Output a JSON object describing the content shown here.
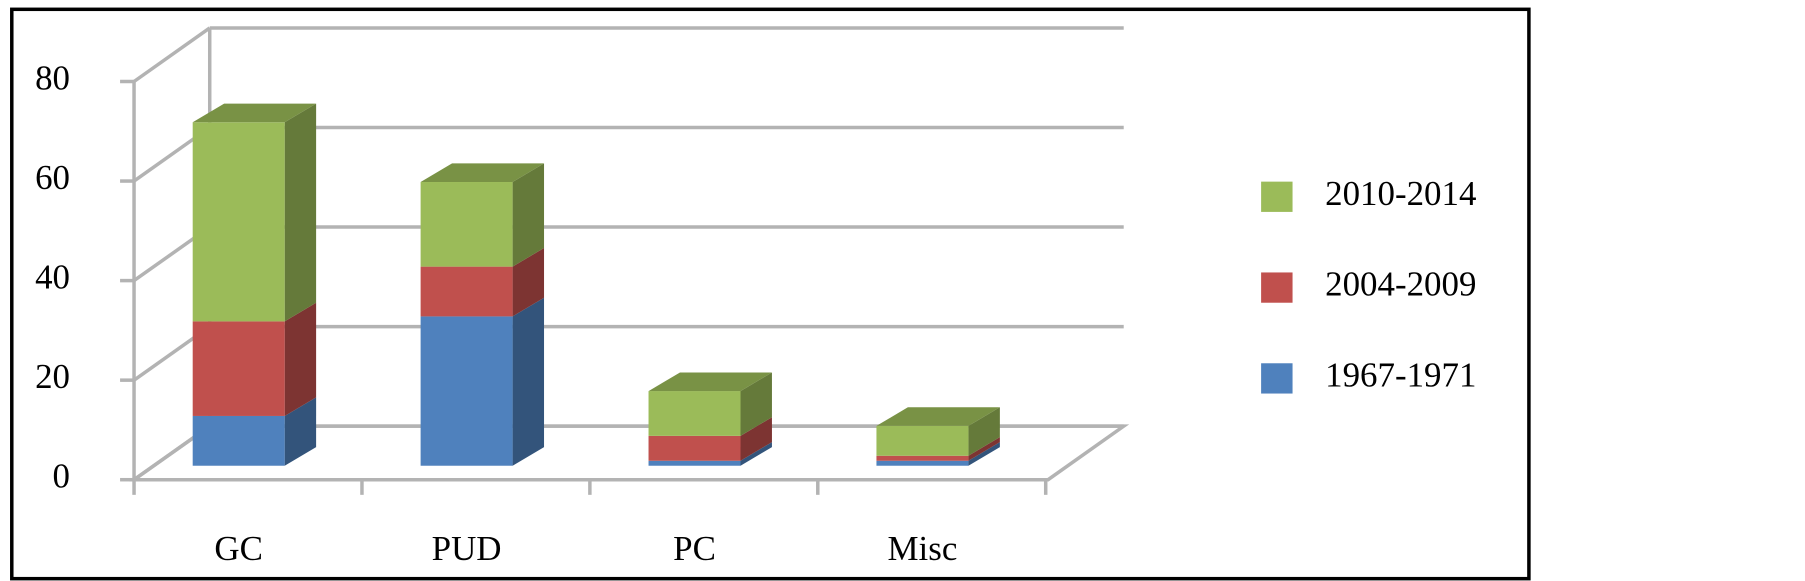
{
  "chart_data": {
    "type": "bar3d_stacked",
    "categories": [
      "GC",
      "PUD",
      "PC",
      "Misc"
    ],
    "series": [
      {
        "name": "1967-1971",
        "color": "#4f81bd",
        "values": [
          10,
          30,
          1,
          1
        ]
      },
      {
        "name": "2004-2009",
        "color": "#c0504d",
        "values": [
          19,
          10,
          5,
          1
        ]
      },
      {
        "name": "2010-2014",
        "color": "#9bbb59",
        "values": [
          40,
          17,
          9,
          6
        ]
      }
    ],
    "ylim": [
      0,
      80
    ],
    "yticks": [
      0,
      20,
      40,
      60,
      80
    ],
    "grid": true,
    "legend": "right"
  }
}
